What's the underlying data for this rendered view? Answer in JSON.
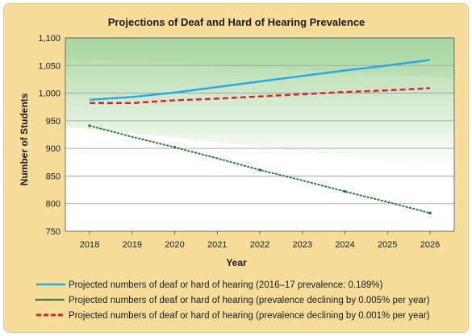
{
  "chart_data": {
    "type": "line",
    "title": "Projections of Deaf and Hard of Hearing Prevalence",
    "xlabel": "Year",
    "ylabel": "Number of Students",
    "x": [
      2018,
      2019,
      2020,
      2021,
      2022,
      2023,
      2024,
      2025,
      2026
    ],
    "ylim": [
      750,
      1100
    ],
    "yticks": [
      750,
      800,
      850,
      900,
      950,
      1000,
      1050,
      1100
    ],
    "ytick_labels": [
      "750",
      "800",
      "850",
      "900",
      "950",
      "1,000",
      "1,050",
      "1,100"
    ],
    "grid": true,
    "legend_position": "bottom",
    "series": [
      {
        "name": "Projected numbers of deaf or hard of hearing (2016–17 prevalence: 0.189%)",
        "values": [
          988,
          993,
          1001,
          1011,
          1021,
          1031,
          1041,
          1050,
          1060
        ],
        "color": "#29abe2",
        "style": "solid"
      },
      {
        "name": "Projected numbers of deaf or hard of hearing (prevalence declining by 0.005% per year)",
        "values": [
          941,
          921,
          902,
          882,
          861,
          842,
          822,
          803,
          783
        ],
        "color": "#2e7d32",
        "style": "dotted"
      },
      {
        "name": "Projected numbers of deaf or hard of hearing (prevalence declining by 0.001% per year)",
        "values": [
          982,
          982,
          987,
          990,
          994,
          998,
          1002,
          1005,
          1009
        ],
        "color": "#d7262d",
        "style": "dashed"
      }
    ],
    "colors": {
      "background": "#f8dc9a",
      "plot_band_dark": "#a9d7a1",
      "plot_band_light": "#ffffff",
      "grid": "#9a9a9a"
    }
  }
}
